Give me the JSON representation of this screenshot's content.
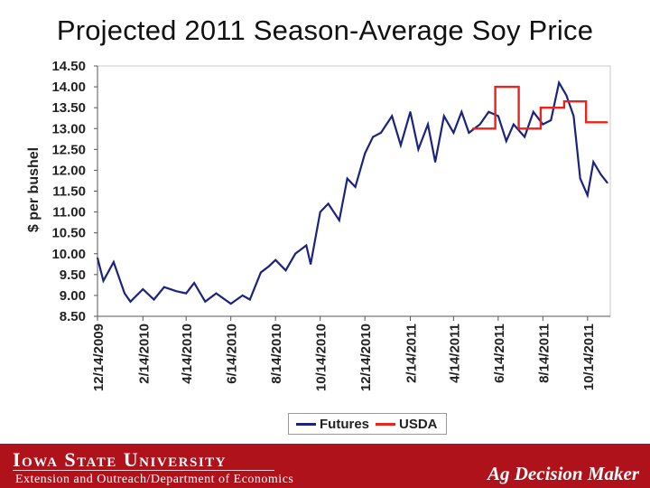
{
  "chart_data": {
    "type": "line",
    "title": "Projected 2011 Season-Average Soy Price",
    "ylabel": "$ per bushel",
    "xlabel": "",
    "ylim": [
      8.5,
      14.5
    ],
    "yticks": [
      "14.50",
      "14.00",
      "13.50",
      "13.00",
      "12.50",
      "12.00",
      "11.50",
      "11.00",
      "10.50",
      "10.00",
      "9.50",
      "9.00",
      "8.50"
    ],
    "xticks": [
      "12/14/2009",
      "2/14/2010",
      "4/14/2010",
      "6/14/2010",
      "8/14/2010",
      "10/14/2010",
      "12/14/2010",
      "2/14/2011",
      "4/14/2011",
      "6/14/2011",
      "8/14/2011",
      "10/14/2011"
    ],
    "legend_position": "bottom",
    "series": [
      {
        "name": "Futures",
        "color": "#1a237e",
        "x": [
          "12/14/2009",
          "12/22/2009",
          "1/5/2010",
          "1/20/2010",
          "1/28/2010",
          "2/14/2010",
          "3/1/2010",
          "3/15/2010",
          "4/1/2010",
          "4/14/2010",
          "4/25/2010",
          "5/10/2010",
          "5/25/2010",
          "6/14/2010",
          "6/30/2010",
          "7/10/2010",
          "7/25/2010",
          "8/5/2010",
          "8/14/2010",
          "8/28/2010",
          "9/10/2010",
          "9/25/2010",
          "10/1/2010",
          "10/14/2010",
          "10/25/2010",
          "11/9/2010",
          "11/20/2010",
          "12/1/2010",
          "12/14/2010",
          "12/25/2010",
          "1/5/2011",
          "1/20/2011",
          "2/1/2011",
          "2/14/2011",
          "2/25/2011",
          "3/10/2011",
          "3/20/2011",
          "4/1/2011",
          "4/14/2011",
          "4/25/2011",
          "5/5/2011",
          "5/20/2011",
          "6/1/2011",
          "6/14/2011",
          "6/25/2011",
          "7/5/2011",
          "7/20/2011",
          "8/1/2011",
          "8/14/2011",
          "8/25/2011",
          "9/5/2011",
          "9/15/2011",
          "9/25/2011",
          "10/4/2011",
          "10/14/2011",
          "10/22/2011",
          "11/1/2011",
          "11/10/2011"
        ],
        "values": [
          9.9,
          9.35,
          9.8,
          9.05,
          8.85,
          9.15,
          8.9,
          9.2,
          9.1,
          9.05,
          9.3,
          8.85,
          9.05,
          8.8,
          9.0,
          8.9,
          9.55,
          9.7,
          9.85,
          9.6,
          10.0,
          10.2,
          9.75,
          11.0,
          11.2,
          10.8,
          11.8,
          11.6,
          12.4,
          12.8,
          12.9,
          13.3,
          12.6,
          13.4,
          12.5,
          13.1,
          12.2,
          13.3,
          12.9,
          13.4,
          12.9,
          13.1,
          13.4,
          13.3,
          12.7,
          13.1,
          12.8,
          13.4,
          13.1,
          13.2,
          14.1,
          13.8,
          13.3,
          11.8,
          11.4,
          12.2,
          11.9,
          11.7
        ]
      },
      {
        "name": "USDA",
        "color": "#e8241c",
        "x": [
          "5/10/2011",
          "6/10/2011",
          "6/10/2011",
          "7/12/2011",
          "7/12/2011",
          "8/11/2011",
          "8/11/2011",
          "9/12/2011",
          "9/12/2011",
          "10/12/2011",
          "10/12/2011",
          "11/10/2011"
        ],
        "values": [
          13.0,
          13.0,
          14.0,
          14.0,
          13.0,
          13.0,
          13.5,
          13.5,
          13.65,
          13.65,
          13.15,
          13.15
        ]
      }
    ]
  },
  "footer": {
    "brand": "Iowa State University",
    "dept": "Extension and Outreach/Department of Economics",
    "product": "Ag Decision Maker"
  }
}
